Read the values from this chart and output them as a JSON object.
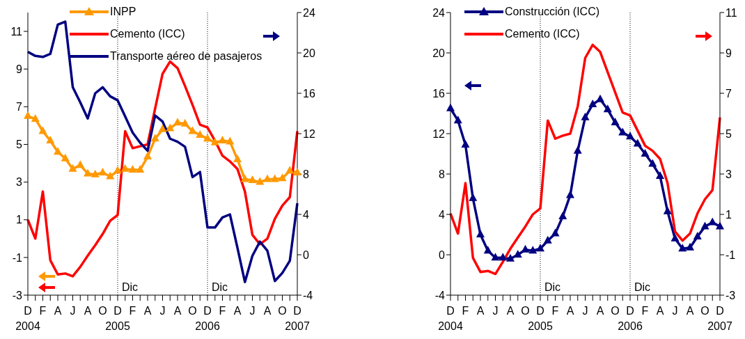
{
  "chart_data": [
    {
      "type": "line",
      "categories": [
        "D\n2004",
        null,
        "F",
        null,
        "A",
        null,
        "J",
        null,
        "A",
        null,
        "O",
        null,
        "D\n2005",
        null,
        "F",
        null,
        "A",
        null,
        "J",
        null,
        "A",
        null,
        "O",
        null,
        "D\n2006",
        null,
        "F",
        null,
        "A",
        null,
        "J",
        null,
        "A",
        null,
        "O",
        null,
        "D\n2007"
      ],
      "series": [
        {
          "name": "INPP",
          "color": "#ff9900",
          "marker": "triangle",
          "values": [
            6.5,
            6.35,
            5.7,
            5.2,
            4.6,
            4.25,
            3.7,
            3.9,
            3.45,
            3.4,
            3.5,
            3.3,
            3.6,
            3.7,
            3.65,
            3.65,
            4.35,
            5.3,
            5.8,
            5.85,
            6.15,
            6.1,
            5.7,
            5.5,
            5.3,
            5.1,
            5.2,
            5.15,
            4.2,
            3.15,
            3.1,
            3.0,
            3.15,
            3.15,
            3.2,
            3.6,
            3.5
          ]
        },
        {
          "name": "Cemento (ICC)",
          "color": "#ff0000",
          "values": [
            1.0,
            0.0,
            2.5,
            -1.15,
            -1.9,
            -1.85,
            -2.0,
            -1.5,
            -0.9,
            -0.35,
            0.25,
            0.95,
            1.25,
            5.7,
            4.8,
            4.9,
            5.0,
            6.9,
            8.75,
            9.4,
            9.05,
            8.1,
            7.1,
            6.05,
            5.9,
            5.2,
            4.4,
            4.1,
            3.7,
            2.5,
            0.2,
            -0.3,
            0.0,
            1.05,
            1.75,
            2.2,
            5.7
          ]
        },
        {
          "name": "Transporte aéreo de pasajeros",
          "color": "#000080",
          "axis": "y2",
          "values": [
            20.1,
            19.7,
            19.6,
            19.9,
            22.8,
            23.1,
            16.6,
            15.1,
            13.5,
            16.0,
            16.6,
            15.7,
            15.3,
            13.7,
            12.1,
            11.1,
            10.3,
            13.8,
            13.2,
            11.5,
            11.2,
            10.7,
            7.7,
            8.2,
            2.7,
            2.7,
            3.7,
            4.0,
            0.7,
            -2.7,
            -0.1,
            1.3,
            0.4,
            -2.6,
            -1.8,
            -0.6,
            5.1
          ]
        }
      ],
      "ylim": [
        -3,
        12
      ],
      "yticks": [
        -3,
        -1,
        1,
        3,
        5,
        7,
        9,
        11
      ],
      "y2lim": [
        -4,
        24
      ],
      "y2ticks": [
        -4,
        0,
        4,
        8,
        12,
        16,
        20,
        24
      ],
      "ref_lines": [
        {
          "axis": "x",
          "value": "D\n2005",
          "label": "Dic",
          "line_style": "dotted"
        },
        {
          "axis": "x",
          "value": "D\n2006",
          "label": "Dic",
          "line_style": "dotted"
        }
      ],
      "legend": "top",
      "grid": false
    },
    {
      "type": "line",
      "categories": [
        "D\n2004",
        null,
        "F",
        null,
        "A",
        null,
        "J",
        null,
        "A",
        null,
        "O",
        null,
        "D\n2005",
        null,
        "F",
        null,
        "A",
        null,
        "J",
        null,
        "A",
        null,
        "O",
        null,
        "D\n2006",
        null,
        "F",
        null,
        "A",
        null,
        "J",
        null,
        "A",
        null,
        "O",
        null,
        "D\n2007"
      ],
      "series": [
        {
          "name": "Construcción (ICC)",
          "color": "#000080",
          "marker": "triangle",
          "values": [
            14.5,
            13.3,
            10.9,
            5.6,
            2.0,
            0.4,
            -0.3,
            -0.3,
            -0.4,
            0.0,
            0.5,
            0.4,
            0.6,
            1.4,
            2.1,
            3.8,
            5.9,
            10.3,
            13.6,
            14.9,
            15.4,
            14.4,
            13.1,
            12.1,
            11.7,
            11.0,
            10.0,
            9.0,
            7.8,
            4.3,
            1.6,
            0.6,
            0.7,
            1.8,
            2.8,
            3.2,
            2.8
          ]
        },
        {
          "name": "Cemento (ICC)",
          "color": "#ff0000",
          "axis": "y2",
          "values": [
            1.05,
            0.05,
            2.55,
            -1.15,
            -1.85,
            -1.8,
            -1.95,
            -1.35,
            -0.7,
            -0.15,
            0.4,
            1.0,
            1.3,
            5.65,
            4.75,
            4.9,
            5.0,
            6.35,
            8.75,
            9.4,
            9.05,
            8.05,
            7.05,
            6.05,
            5.9,
            5.15,
            4.4,
            4.15,
            3.75,
            2.55,
            0.15,
            -0.3,
            0.05,
            1.05,
            1.75,
            2.2,
            5.8
          ]
        }
      ],
      "ylim": [
        -4,
        24
      ],
      "yticks": [
        -4,
        0,
        4,
        8,
        12,
        16,
        20,
        24
      ],
      "y2lim": [
        -3,
        11
      ],
      "y2ticks": [
        -3,
        -1,
        1,
        3,
        5,
        7,
        9,
        11
      ],
      "ref_lines": [
        {
          "axis": "x",
          "value": "D\n2005",
          "label": "Dic",
          "line_style": "dotted"
        },
        {
          "axis": "x",
          "value": "D\n2006",
          "label": "Dic",
          "line_style": "dotted"
        }
      ],
      "legend": "top left",
      "grid": false
    }
  ]
}
